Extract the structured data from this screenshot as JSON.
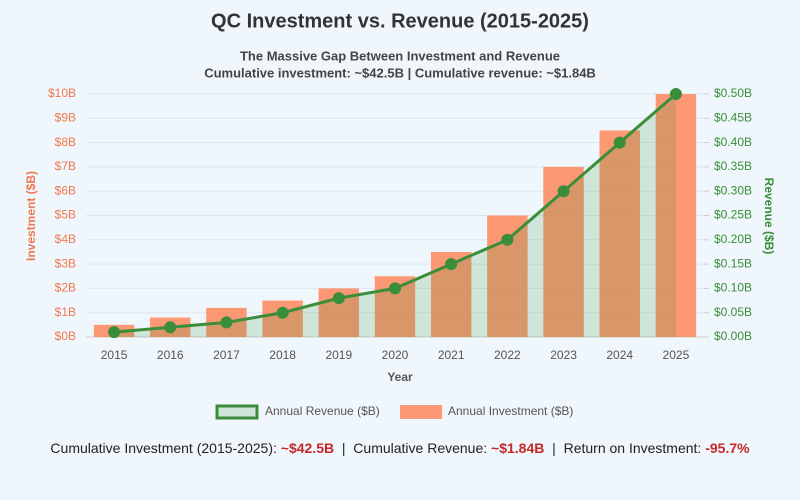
{
  "chart_data": {
    "type": "bar",
    "title": "QC Investment vs. Revenue (2015-2025)",
    "subtitle": [
      "The Massive Gap Between Investment and Revenue",
      "Cumulative investment: ~$42.5B  |  Cumulative revenue: ~$1.84B"
    ],
    "x_label": "Year",
    "y_label": "Investment ($B)",
    "y2_label": "Revenue ($B)",
    "categories": [
      "2015",
      "2016",
      "2017",
      "2018",
      "2019",
      "2020",
      "2021",
      "2022",
      "2023",
      "2024",
      "2025"
    ],
    "series": [
      {
        "name": "Annual Revenue ($B)",
        "type": "line",
        "axis": "y2",
        "color": "#3a8e3a",
        "fill": "rgba(60,150,60,0.18)",
        "values": [
          0.01,
          0.02,
          0.03,
          0.05,
          0.08,
          0.1,
          0.15,
          0.2,
          0.3,
          0.4,
          0.5
        ]
      },
      {
        "name": "Annual Investment ($B)",
        "type": "bar",
        "axis": "y",
        "color": "#ff7f50",
        "values": [
          0.5,
          0.8,
          1.2,
          1.5,
          2.0,
          2.5,
          3.5,
          5.0,
          7.0,
          8.5,
          10
        ]
      }
    ],
    "ylim": [
      0,
      10
    ],
    "yticks": [
      {
        "value": 0,
        "label": "$0B"
      },
      {
        "value": 1,
        "label": "$1B"
      },
      {
        "value": 2,
        "label": "$2B"
      },
      {
        "value": 3,
        "label": "$3B"
      },
      {
        "value": 4,
        "label": "$4B"
      },
      {
        "value": 5,
        "label": "$5B"
      },
      {
        "value": 6,
        "label": "$6B"
      },
      {
        "value": 7,
        "label": "$7B"
      },
      {
        "value": 8,
        "label": "$8B"
      },
      {
        "value": 9,
        "label": "$9B"
      },
      {
        "value": 10,
        "label": "$10B"
      }
    ],
    "y2lim": [
      0,
      0.5
    ],
    "y2ticks": [
      {
        "value": 0,
        "label": "$0.00B"
      },
      {
        "value": 0.05,
        "label": "$0.05B"
      },
      {
        "value": 0.1,
        "label": "$0.10B"
      },
      {
        "value": 0.15,
        "label": "$0.15B"
      },
      {
        "value": 0.2,
        "label": "$0.20B"
      },
      {
        "value": 0.25,
        "label": "$0.25B"
      },
      {
        "value": 0.3,
        "label": "$0.30B"
      },
      {
        "value": 0.35,
        "label": "$0.35B"
      },
      {
        "value": 0.4,
        "label": "$0.40B"
      },
      {
        "value": 0.45,
        "label": "$0.45B"
      },
      {
        "value": 0.5,
        "label": "$0.50B"
      }
    ],
    "grid": true,
    "legend": "bottom",
    "footer": {
      "separator": "|",
      "items": [
        {
          "label": "Cumulative Investment (2015-2025):",
          "value": "~$42.5B"
        },
        {
          "label": "Cumulative Revenue:",
          "value": "~$1.84B"
        },
        {
          "label": "Return on Investment:",
          "value": "-95.7%"
        }
      ]
    }
  }
}
